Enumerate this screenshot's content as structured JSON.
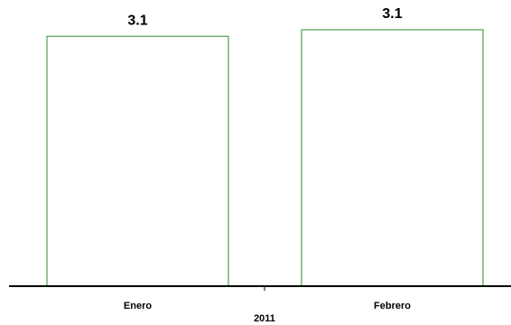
{
  "chart_data": {
    "type": "bar",
    "categories": [
      "Enero",
      "Febrero"
    ],
    "values": [
      3.06,
      3.14
    ],
    "value_labels": [
      "3.1",
      "3.1"
    ],
    "group_label": "2011",
    "color": "#2e8b2e",
    "ylim": [
      0,
      3.5
    ]
  }
}
